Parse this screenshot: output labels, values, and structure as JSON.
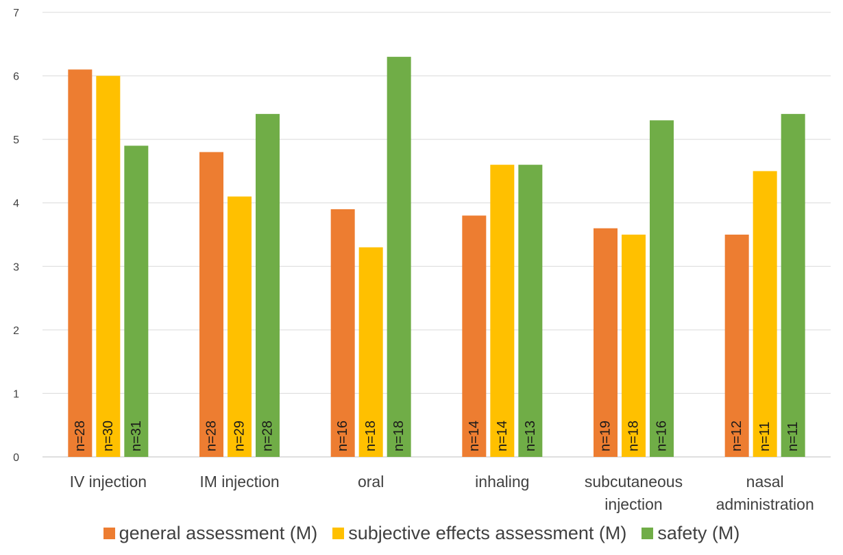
{
  "chart_data": {
    "type": "bar",
    "categories": [
      [
        "IV injection"
      ],
      [
        "IM injection"
      ],
      [
        "oral"
      ],
      [
        "inhaling"
      ],
      [
        "subcutaneous",
        "injection"
      ],
      [
        "nasal",
        "administration"
      ]
    ],
    "series": [
      {
        "name": "general assessment (M)",
        "color": "#ED7D31",
        "values": [
          6.1,
          4.8,
          3.9,
          3.8,
          3.6,
          3.5
        ],
        "n_labels": [
          "n=28",
          "n=28",
          "n=16",
          "n=14",
          "n=19",
          "n=12"
        ]
      },
      {
        "name": "subjective effects assessment (M)",
        "color": "#FFC000",
        "values": [
          6.0,
          4.1,
          3.3,
          4.6,
          3.5,
          4.5
        ],
        "n_labels": [
          "n=30",
          "n=29",
          "n=18",
          "n=14",
          "n=18",
          "n=11"
        ]
      },
      {
        "name": "safety (M)",
        "color": "#70AD47",
        "values": [
          4.9,
          5.4,
          6.3,
          4.6,
          5.3,
          5.4
        ],
        "n_labels": [
          "n=31",
          "n=28",
          "n=18",
          "n=13",
          "n=16",
          "n=11"
        ]
      }
    ],
    "ylim": [
      0,
      7
    ],
    "yticks": [
      "0",
      "1",
      "2",
      "3",
      "4",
      "5",
      "6",
      "7"
    ],
    "grid": true,
    "legend_position": "bottom"
  }
}
